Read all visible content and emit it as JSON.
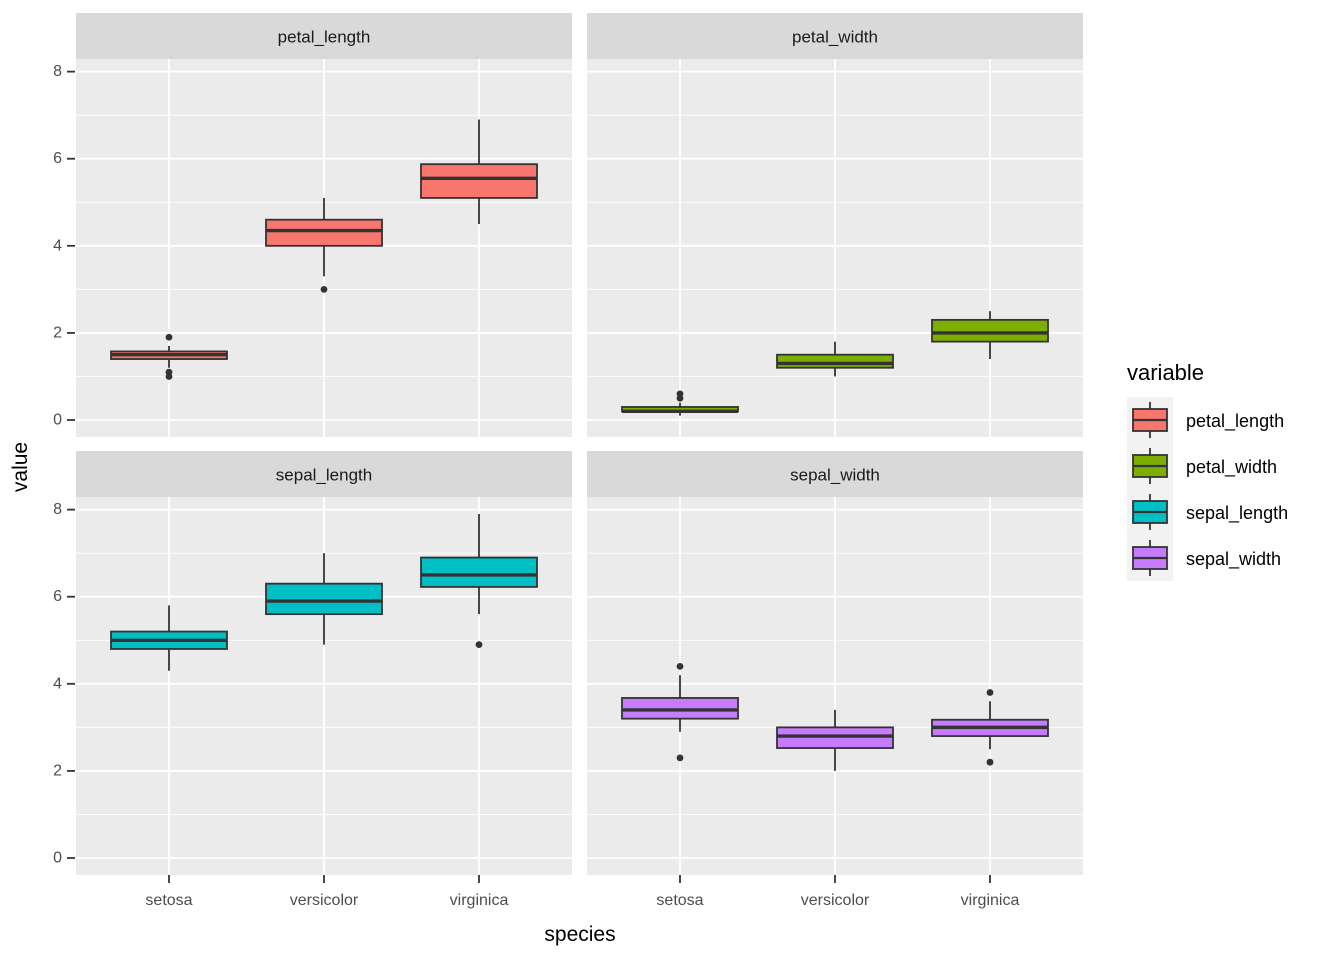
{
  "chart_data": {
    "type": "boxplot",
    "title": "",
    "xlabel": "species",
    "ylabel": "value",
    "facet_by": "variable",
    "categories": [
      "setosa",
      "versicolor",
      "virginica"
    ],
    "y_ticks": [
      0,
      2,
      4,
      6,
      8
    ],
    "y_minor_ticks": [
      1,
      3,
      5,
      7
    ],
    "ylim": [
      -0.39,
      8.29
    ],
    "grid": "on",
    "legend": {
      "title": "variable",
      "position": "right",
      "entries": [
        "petal_length",
        "petal_width",
        "sepal_length",
        "sepal_width"
      ]
    },
    "theme": {
      "panel_bg": "#ebebeb",
      "strip_bg": "#d9d9d9",
      "grid_color": "#ffffff",
      "box_stroke": "#333333",
      "axis_text_color": "#4d4d4d",
      "legend_key_bg": "#f2f2f2"
    },
    "facets": [
      {
        "label": "petal_length",
        "color": "#F8766D",
        "boxes": [
          {
            "category": "setosa",
            "lo": 1.2,
            "q1": 1.4,
            "median": 1.5,
            "q3": 1.575,
            "hi": 1.7,
            "outliers": [
              1.0,
              1.1,
              1.9
            ]
          },
          {
            "category": "versicolor",
            "lo": 3.3,
            "q1": 4.0,
            "median": 4.35,
            "q3": 4.6,
            "hi": 5.1,
            "outliers": [
              3.0
            ]
          },
          {
            "category": "virginica",
            "lo": 4.5,
            "q1": 5.1,
            "median": 5.55,
            "q3": 5.875,
            "hi": 6.9,
            "outliers": []
          }
        ]
      },
      {
        "label": "petal_width",
        "color": "#7CAE00",
        "boxes": [
          {
            "category": "setosa",
            "lo": 0.1,
            "q1": 0.2,
            "median": 0.2,
            "q3": 0.3,
            "hi": 0.4,
            "outliers": [
              0.5,
              0.6
            ]
          },
          {
            "category": "versicolor",
            "lo": 1.0,
            "q1": 1.2,
            "median": 1.3,
            "q3": 1.5,
            "hi": 1.8,
            "outliers": []
          },
          {
            "category": "virginica",
            "lo": 1.4,
            "q1": 1.8,
            "median": 2.0,
            "q3": 2.3,
            "hi": 2.5,
            "outliers": []
          }
        ]
      },
      {
        "label": "sepal_length",
        "color": "#00BFC4",
        "boxes": [
          {
            "category": "setosa",
            "lo": 4.3,
            "q1": 4.8,
            "median": 5.0,
            "q3": 5.2,
            "hi": 5.8,
            "outliers": []
          },
          {
            "category": "versicolor",
            "lo": 4.9,
            "q1": 5.6,
            "median": 5.9,
            "q3": 6.3,
            "hi": 7.0,
            "outliers": []
          },
          {
            "category": "virginica",
            "lo": 5.6,
            "q1": 6.225,
            "median": 6.5,
            "q3": 6.9,
            "hi": 7.9,
            "outliers": [
              4.9
            ]
          }
        ]
      },
      {
        "label": "sepal_width",
        "color": "#C77CFF",
        "boxes": [
          {
            "category": "setosa",
            "lo": 2.9,
            "q1": 3.2,
            "median": 3.4,
            "q3": 3.675,
            "hi": 4.2,
            "outliers": [
              2.3,
              4.4
            ]
          },
          {
            "category": "versicolor",
            "lo": 2.0,
            "q1": 2.525,
            "median": 2.8,
            "q3": 3.0,
            "hi": 3.4,
            "outliers": []
          },
          {
            "category": "virginica",
            "lo": 2.5,
            "q1": 2.8,
            "median": 3.0,
            "q3": 3.175,
            "hi": 3.6,
            "outliers": [
              2.2,
              3.8
            ]
          }
        ]
      }
    ]
  }
}
